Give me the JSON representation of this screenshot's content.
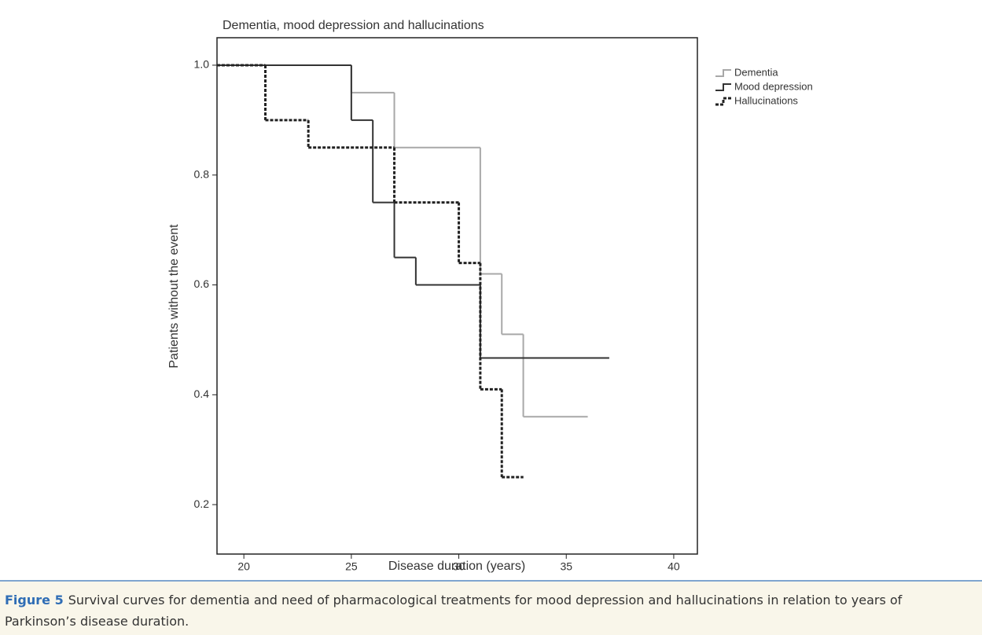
{
  "chart_data": {
    "type": "step",
    "title": "Dementia, mood depression and hallucinations",
    "xlabel": "Disease duration (years)",
    "ylabel": "Patients without the event",
    "xlim": [
      18.75,
      41.1
    ],
    "ylim": [
      0.11,
      1.05
    ],
    "xticks": [
      20,
      25,
      30,
      35,
      40
    ],
    "yticks": [
      {
        "value": 0.2,
        "label": "0.2"
      },
      {
        "value": 0.4,
        "label": "0.4"
      },
      {
        "value": 0.6,
        "label": "0.6"
      },
      {
        "value": 0.8,
        "label": "0.8"
      },
      {
        "value": 1.0,
        "label": "1.0"
      }
    ],
    "legend": "top-right",
    "series": [
      {
        "name": "Dementia",
        "color": "#a8a8a8",
        "dashed": false,
        "x": [
          18.75,
          25,
          27,
          31,
          32,
          33,
          36
        ],
        "values": [
          1.0,
          0.95,
          0.85,
          0.62,
          0.51,
          0.36,
          0.36
        ]
      },
      {
        "name": "Mood depression",
        "color": "#333333",
        "dashed": false,
        "x": [
          18.75,
          25,
          26,
          27,
          28,
          31,
          37
        ],
        "values": [
          1.0,
          0.9,
          0.75,
          0.65,
          0.6,
          0.467,
          0.467
        ]
      },
      {
        "name": "Hallucinations",
        "color": "#222222",
        "dashed": true,
        "x": [
          18.75,
          21,
          23,
          27,
          30,
          31,
          32,
          33
        ],
        "values": [
          1.0,
          0.9,
          0.85,
          0.75,
          0.64,
          0.41,
          0.25,
          0.25
        ]
      }
    ]
  },
  "caption": {
    "label": "Figure 5",
    "text": "Survival curves for dementia and need of pharmacological treatments for mood depression and hallucinations in relation to years of Parkinson’s disease duration."
  }
}
